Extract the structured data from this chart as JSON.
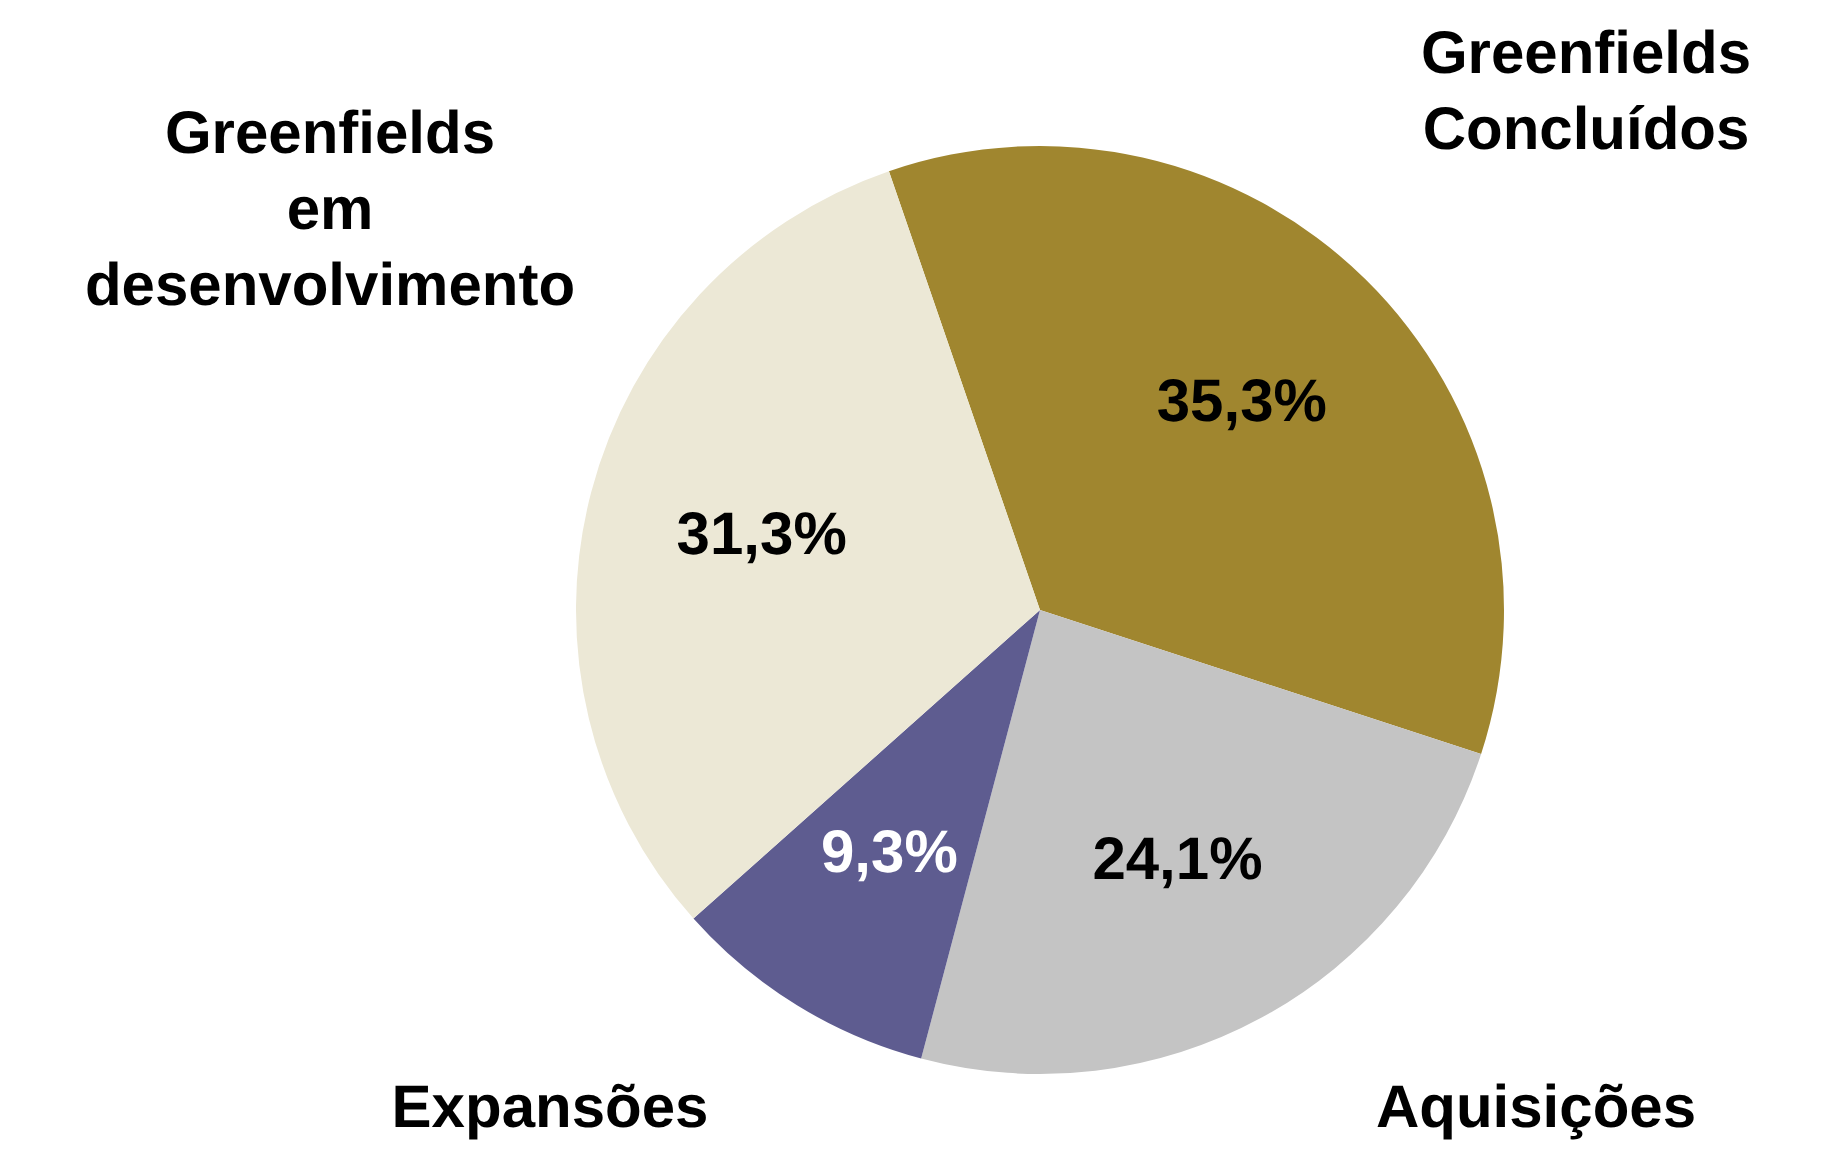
{
  "chart_data": {
    "type": "pie",
    "categories": [
      "Greenfields Concluídos",
      "Aquisições",
      "Expansões",
      "Greenfields em desenvolvimento"
    ],
    "values": [
      35.3,
      24.1,
      9.3,
      31.3
    ],
    "colors": [
      "#a0862f",
      "#c4c4c4",
      "#5e5c90",
      "#ece8d6"
    ],
    "value_labels": [
      "35,3%",
      "24,1%",
      "9,3%",
      "31,3%"
    ],
    "legend": false
  }
}
